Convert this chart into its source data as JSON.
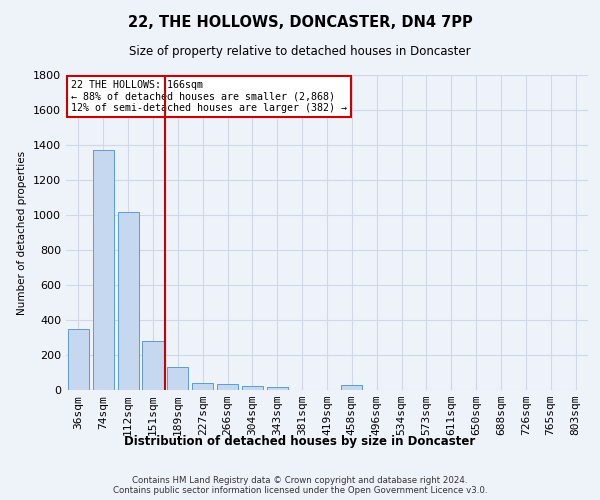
{
  "title": "22, THE HOLLOWS, DONCASTER, DN4 7PP",
  "subtitle": "Size of property relative to detached houses in Doncaster",
  "xlabel": "Distribution of detached houses by size in Doncaster",
  "ylabel": "Number of detached properties",
  "footer_line1": "Contains HM Land Registry data © Crown copyright and database right 2024.",
  "footer_line2": "Contains public sector information licensed under the Open Government Licence v3.0.",
  "bin_labels": [
    "36sqm",
    "74sqm",
    "112sqm",
    "151sqm",
    "189sqm",
    "227sqm",
    "266sqm",
    "304sqm",
    "343sqm",
    "381sqm",
    "419sqm",
    "458sqm",
    "496sqm",
    "534sqm",
    "573sqm",
    "611sqm",
    "650sqm",
    "688sqm",
    "726sqm",
    "765sqm",
    "803sqm"
  ],
  "bar_heights": [
    350,
    1370,
    1020,
    280,
    130,
    40,
    35,
    25,
    18,
    0,
    0,
    28,
    0,
    0,
    0,
    0,
    0,
    0,
    0,
    0,
    0
  ],
  "bar_color": "#c5d8f0",
  "bar_edge_color": "#5b9bd5",
  "property_label": "22 THE HOLLOWS: 166sqm",
  "annotation_line1": "← 88% of detached houses are smaller (2,868)",
  "annotation_line2": "12% of semi-detached houses are larger (382) →",
  "vline_color": "#cc0000",
  "ylim": [
    0,
    1800
  ],
  "yticks": [
    0,
    200,
    400,
    600,
    800,
    1000,
    1200,
    1400,
    1600,
    1800
  ],
  "grid_color": "#d0d8e8",
  "bg_color": "#eef2f9",
  "annotation_box_color": "#ffffff",
  "annotation_box_edge": "#cc0000",
  "figsize": [
    6.0,
    5.0
  ],
  "dpi": 100
}
